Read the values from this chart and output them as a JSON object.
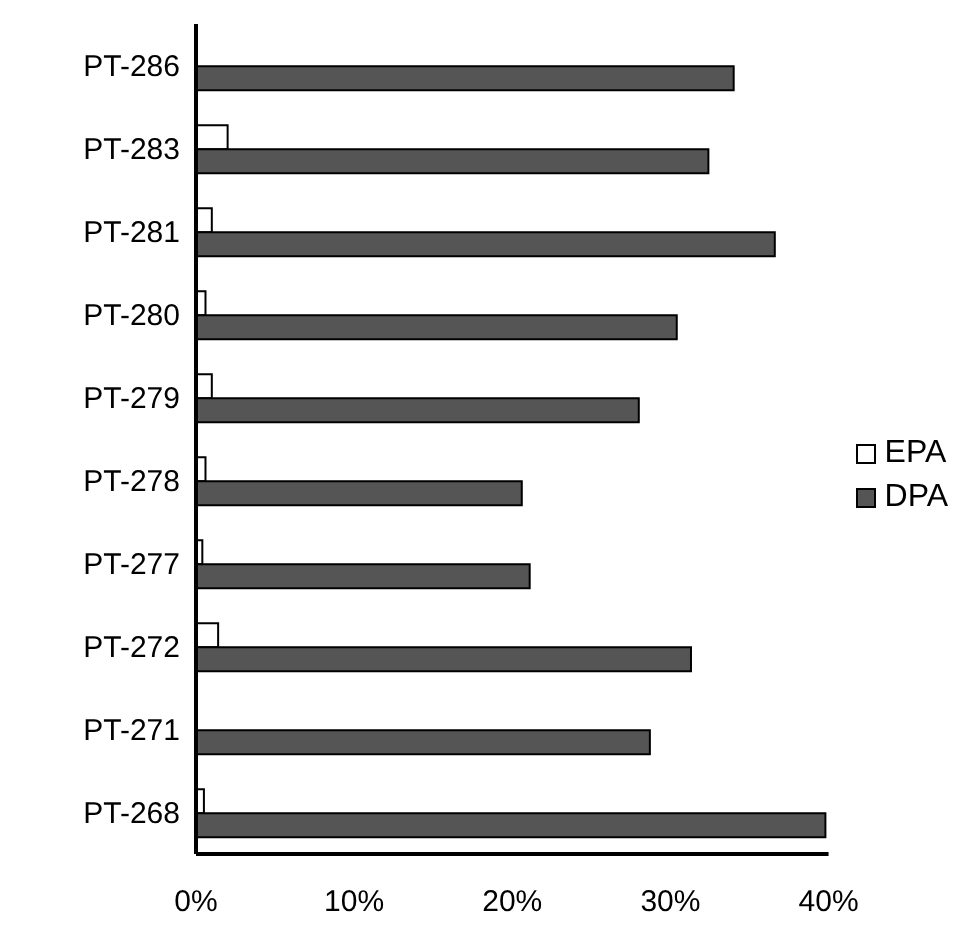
{
  "chart_data": {
    "type": "bar",
    "orientation": "horizontal",
    "categories": [
      "PT-286",
      "PT-283",
      "PT-281",
      "PT-280",
      "PT-279",
      "PT-278",
      "PT-277",
      "PT-272",
      "PT-271",
      "PT-268"
    ],
    "series": [
      {
        "name": "EPA",
        "color": "#ffffff",
        "values": [
          0,
          2.0,
          1.0,
          0.6,
          1.0,
          0.6,
          0.4,
          1.4,
          null,
          0.5
        ]
      },
      {
        "name": "DPA",
        "color": "#555555",
        "values": [
          34.0,
          32.4,
          36.6,
          30.4,
          28.0,
          20.6,
          21.1,
          31.3,
          28.7,
          39.8
        ]
      }
    ],
    "xlim": [
      0,
      40
    ],
    "xticks": [
      {
        "value": 0,
        "label": "0%"
      },
      {
        "value": 10,
        "label": "10%"
      },
      {
        "value": 20,
        "label": "20%"
      },
      {
        "value": 30,
        "label": "30%"
      },
      {
        "value": 40,
        "label": "40%"
      }
    ],
    "grid": false,
    "legend": "right"
  }
}
